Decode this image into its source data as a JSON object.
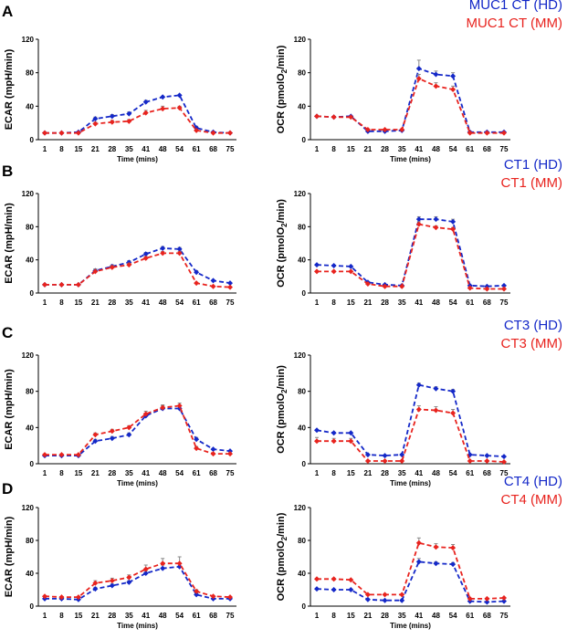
{
  "colors": {
    "hd": "#1428c8",
    "mm": "#e8231e",
    "axis": "#000000",
    "error": "#888888"
  },
  "panel_letters": [
    "A",
    "B",
    "C",
    "D"
  ],
  "chart_data": [
    {
      "type": "line",
      "panel": "A",
      "title": "",
      "xlabel": "Time (mins)",
      "ylabel": "ECAR (mpH/min)",
      "ylabel_sub": "",
      "ylabel_end": "",
      "categories": [
        "1",
        "8",
        "15",
        "21",
        "28",
        "35",
        "41",
        "48",
        "54",
        "61",
        "68",
        "75"
      ],
      "ylim": [
        0,
        120
      ],
      "yticks": [
        "0",
        "40",
        "80",
        "120"
      ],
      "grid": false,
      "legend": [],
      "series": [
        {
          "name": "HD",
          "values": [
            8,
            8,
            9,
            25,
            28,
            31,
            45,
            51,
            53,
            14,
            9,
            8
          ],
          "errors": [
            1,
            1,
            1,
            2,
            2,
            2,
            2,
            1,
            1,
            2,
            1,
            1
          ]
        },
        {
          "name": "MM",
          "values": [
            8,
            8,
            8,
            19,
            21,
            22,
            32,
            37,
            38,
            11,
            8,
            8
          ],
          "errors": [
            1,
            1,
            1,
            2,
            2,
            2,
            3,
            3,
            2,
            1,
            1,
            1
          ]
        }
      ]
    },
    {
      "type": "line",
      "panel": "A",
      "title": "",
      "xlabel": "Time (mins)",
      "ylabel": "OCR (pmolO",
      "ylabel_sub": "2",
      "ylabel_end": "/min)",
      "categories": [
        "1",
        "8",
        "15",
        "21",
        "28",
        "35",
        "41",
        "48",
        "54",
        "61",
        "68",
        "75"
      ],
      "ylim": [
        0,
        120
      ],
      "yticks": [
        "0",
        "40",
        "80",
        "120"
      ],
      "grid": false,
      "legend": [
        "MUC1 CT (HD)",
        "MUC1 CT (MM)"
      ],
      "series": [
        {
          "name": "HD",
          "values": [
            28,
            27,
            28,
            10,
            10,
            11,
            85,
            78,
            76,
            9,
            9,
            9
          ],
          "errors": [
            1,
            1,
            1,
            1,
            1,
            1,
            10,
            4,
            4,
            1,
            1,
            1
          ]
        },
        {
          "name": "MM",
          "values": [
            28,
            27,
            27,
            12,
            12,
            12,
            73,
            64,
            60,
            8,
            8,
            8
          ],
          "errors": [
            1,
            1,
            1,
            1,
            1,
            1,
            5,
            4,
            4,
            1,
            1,
            1
          ]
        }
      ]
    },
    {
      "type": "line",
      "panel": "B",
      "title": "",
      "xlabel": "",
      "ylabel": "ECAR (mpH/min)",
      "ylabel_sub": "",
      "ylabel_end": "",
      "categories": [
        "1",
        "8",
        "15",
        "21",
        "28",
        "35",
        "41",
        "48",
        "54",
        "61",
        "68",
        "75"
      ],
      "ylim": [
        0,
        120
      ],
      "yticks": [
        "0",
        "40",
        "80",
        "120"
      ],
      "grid": false,
      "legend": [],
      "series": [
        {
          "name": "HD",
          "values": [
            10,
            10,
            10,
            27,
            32,
            37,
            47,
            54,
            53,
            25,
            15,
            12
          ],
          "errors": [
            1,
            1,
            1,
            2,
            2,
            2,
            2,
            2,
            2,
            2,
            1,
            1
          ]
        },
        {
          "name": "MM",
          "values": [
            10,
            10,
            10,
            26,
            31,
            34,
            42,
            48,
            48,
            12,
            8,
            7
          ],
          "errors": [
            1,
            1,
            1,
            3,
            2,
            2,
            2,
            2,
            2,
            1,
            1,
            1
          ]
        }
      ]
    },
    {
      "type": "line",
      "panel": "B",
      "title": "",
      "xlabel": "",
      "ylabel": "OCR (pmolO",
      "ylabel_sub": "2",
      "ylabel_end": "/min)",
      "categories": [
        "1",
        "8",
        "15",
        "21",
        "28",
        "35",
        "41",
        "48",
        "54",
        "61",
        "68",
        "75"
      ],
      "ylim": [
        0,
        120
      ],
      "yticks": [
        "0",
        "40",
        "80",
        "120"
      ],
      "grid": false,
      "legend": [
        "CT1 (HD)",
        "CT1 (MM)"
      ],
      "series": [
        {
          "name": "HD",
          "values": [
            34,
            33,
            32,
            13,
            10,
            9,
            89,
            89,
            86,
            9,
            8,
            9
          ],
          "errors": [
            1,
            1,
            1,
            1,
            1,
            1,
            3,
            3,
            3,
            1,
            1,
            1
          ]
        },
        {
          "name": "MM",
          "values": [
            26,
            26,
            26,
            11,
            8,
            8,
            83,
            79,
            77,
            6,
            5,
            5
          ],
          "errors": [
            1,
            1,
            1,
            1,
            1,
            1,
            3,
            2,
            2,
            1,
            1,
            1
          ]
        }
      ]
    },
    {
      "type": "line",
      "panel": "C",
      "title": "",
      "xlabel": "Time (mins)",
      "ylabel": "ECAR (mpH/min)",
      "ylabel_sub": "",
      "ylabel_end": "",
      "categories": [
        "1",
        "8",
        "15",
        "21",
        "28",
        "35",
        "41",
        "48",
        "54",
        "61",
        "68",
        "75"
      ],
      "ylim": [
        0,
        120
      ],
      "yticks": [
        "0",
        "40",
        "80",
        "120"
      ],
      "grid": false,
      "legend": [],
      "series": [
        {
          "name": "HD",
          "values": [
            9,
            9,
            9,
            25,
            28,
            32,
            53,
            61,
            61,
            27,
            16,
            14
          ],
          "errors": [
            1,
            1,
            1,
            2,
            2,
            2,
            3,
            3,
            3,
            2,
            1,
            1
          ]
        },
        {
          "name": "MM",
          "values": [
            10,
            10,
            10,
            32,
            36,
            40,
            55,
            62,
            64,
            17,
            11,
            11
          ],
          "errors": [
            1,
            1,
            1,
            2,
            2,
            2,
            3,
            3,
            3,
            2,
            1,
            1
          ]
        }
      ]
    },
    {
      "type": "line",
      "panel": "C",
      "title": "",
      "xlabel": "Time (mins)",
      "ylabel": "OCR (pmolO",
      "ylabel_sub": "2",
      "ylabel_end": "/min)",
      "categories": [
        "1",
        "8",
        "15",
        "21",
        "28",
        "35",
        "41",
        "48",
        "54",
        "61",
        "68",
        "75"
      ],
      "ylim": [
        0,
        120
      ],
      "yticks": [
        "0",
        "40",
        "80",
        "120"
      ],
      "grid": false,
      "legend": [
        "CT3 (HD)",
        "CT3 (MM)"
      ],
      "series": [
        {
          "name": "HD",
          "values": [
            37,
            34,
            34,
            10,
            9,
            10,
            87,
            83,
            80,
            10,
            9,
            8
          ],
          "errors": [
            1,
            1,
            1,
            1,
            1,
            1,
            2,
            2,
            2,
            1,
            1,
            1
          ]
        },
        {
          "name": "MM",
          "values": [
            25,
            25,
            25,
            3,
            3,
            3,
            60,
            59,
            56,
            3,
            3,
            2
          ],
          "errors": [
            4,
            3,
            3,
            1,
            1,
            1,
            4,
            4,
            4,
            1,
            1,
            1
          ]
        }
      ]
    },
    {
      "type": "line",
      "panel": "D",
      "title": "",
      "xlabel": "Time (mins)",
      "ylabel": "ECAR (mpH/min)",
      "ylabel_sub": "",
      "ylabel_end": "",
      "categories": [
        "1",
        "8",
        "15",
        "21",
        "28",
        "35",
        "41",
        "48",
        "54",
        "61",
        "68",
        "75"
      ],
      "ylim": [
        0,
        120
      ],
      "yticks": [
        "0",
        "40",
        "80",
        "120"
      ],
      "grid": false,
      "legend": [],
      "series": [
        {
          "name": "HD",
          "values": [
            9,
            9,
            8,
            21,
            25,
            29,
            40,
            46,
            48,
            14,
            9,
            9
          ],
          "errors": [
            1,
            1,
            1,
            2,
            2,
            2,
            3,
            4,
            4,
            2,
            1,
            1
          ]
        },
        {
          "name": "MM",
          "values": [
            12,
            11,
            11,
            28,
            31,
            35,
            45,
            52,
            52,
            18,
            12,
            11
          ],
          "errors": [
            1,
            1,
            1,
            3,
            3,
            3,
            5,
            6,
            8,
            2,
            1,
            1
          ]
        }
      ]
    },
    {
      "type": "line",
      "panel": "D",
      "title": "",
      "xlabel": "Time (mins)",
      "ylabel": "OCR (pmolO",
      "ylabel_sub": "2",
      "ylabel_end": "/min)",
      "categories": [
        "1",
        "8",
        "15",
        "21",
        "28",
        "35",
        "41",
        "48",
        "54",
        "61",
        "68",
        "75"
      ],
      "ylim": [
        0,
        120
      ],
      "yticks": [
        "0",
        "40",
        "80",
        "120"
      ],
      "grid": false,
      "legend": [
        "CT4 (HD)",
        "CT4 (MM)"
      ],
      "series": [
        {
          "name": "HD",
          "values": [
            21,
            20,
            20,
            8,
            7,
            7,
            54,
            52,
            51,
            6,
            5,
            6
          ],
          "errors": [
            1,
            1,
            1,
            1,
            1,
            1,
            4,
            2,
            2,
            1,
            1,
            1
          ]
        },
        {
          "name": "MM",
          "values": [
            33,
            33,
            32,
            14,
            14,
            14,
            77,
            72,
            71,
            9,
            9,
            10
          ],
          "errors": [
            1,
            1,
            1,
            1,
            1,
            1,
            6,
            4,
            4,
            1,
            1,
            1
          ]
        }
      ]
    }
  ]
}
